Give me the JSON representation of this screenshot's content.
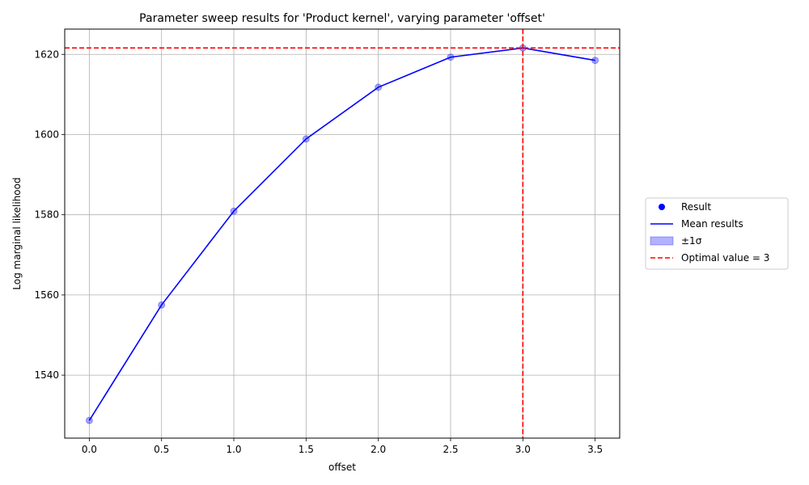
{
  "chart_data": {
    "type": "line",
    "title": "Parameter sweep results for 'Product kernel', varying parameter 'offset'",
    "xlabel": "offset",
    "ylabel": "Log marginal likelihood",
    "xlim": [
      -0.17,
      3.67
    ],
    "ylim": [
      1524.3,
      1626.3
    ],
    "x_ticks": [
      0.0,
      0.5,
      1.0,
      1.5,
      2.0,
      2.5,
      3.0,
      3.5
    ],
    "x_tick_labels": [
      "0.0",
      "0.5",
      "1.0",
      "1.5",
      "2.0",
      "2.5",
      "3.0",
      "3.5"
    ],
    "y_ticks": [
      1540,
      1560,
      1580,
      1600,
      1620
    ],
    "y_tick_labels": [
      "1540",
      "1560",
      "1580",
      "1600",
      "1620"
    ],
    "grid": true,
    "legend_placement": "outside-right",
    "series": [
      {
        "name": "Result",
        "kind": "scatter",
        "color": "#0000ff",
        "x": [
          0.0,
          0.5,
          1.0,
          1.5,
          2.0,
          2.5,
          3.0,
          3.5
        ],
        "y": [
          1528.7,
          1557.5,
          1580.9,
          1598.9,
          1611.8,
          1619.3,
          1621.6,
          1618.5
        ]
      },
      {
        "name": "Mean results",
        "kind": "line",
        "color": "#0000ff",
        "x": [
          0.0,
          0.5,
          1.0,
          1.5,
          2.0,
          2.5,
          3.0,
          3.5
        ],
        "y": [
          1528.7,
          1557.5,
          1580.9,
          1598.9,
          1611.8,
          1619.3,
          1621.6,
          1618.5
        ]
      }
    ],
    "band_label": "±1σ",
    "band_color": "#0000ff",
    "optimal": {
      "label": "Optimal value = 3",
      "x": 3.0,
      "y": 1621.6,
      "color": "#ff0000"
    },
    "legend": [
      {
        "label": "Result",
        "kind": "marker",
        "color": "#0000ff"
      },
      {
        "label": "Mean results",
        "kind": "line",
        "color": "#0000ff"
      },
      {
        "label": "±1σ",
        "kind": "patch",
        "color": "#0000ff"
      },
      {
        "label": "Optimal value = 3",
        "kind": "dashed",
        "color": "#ff0000"
      }
    ]
  }
}
